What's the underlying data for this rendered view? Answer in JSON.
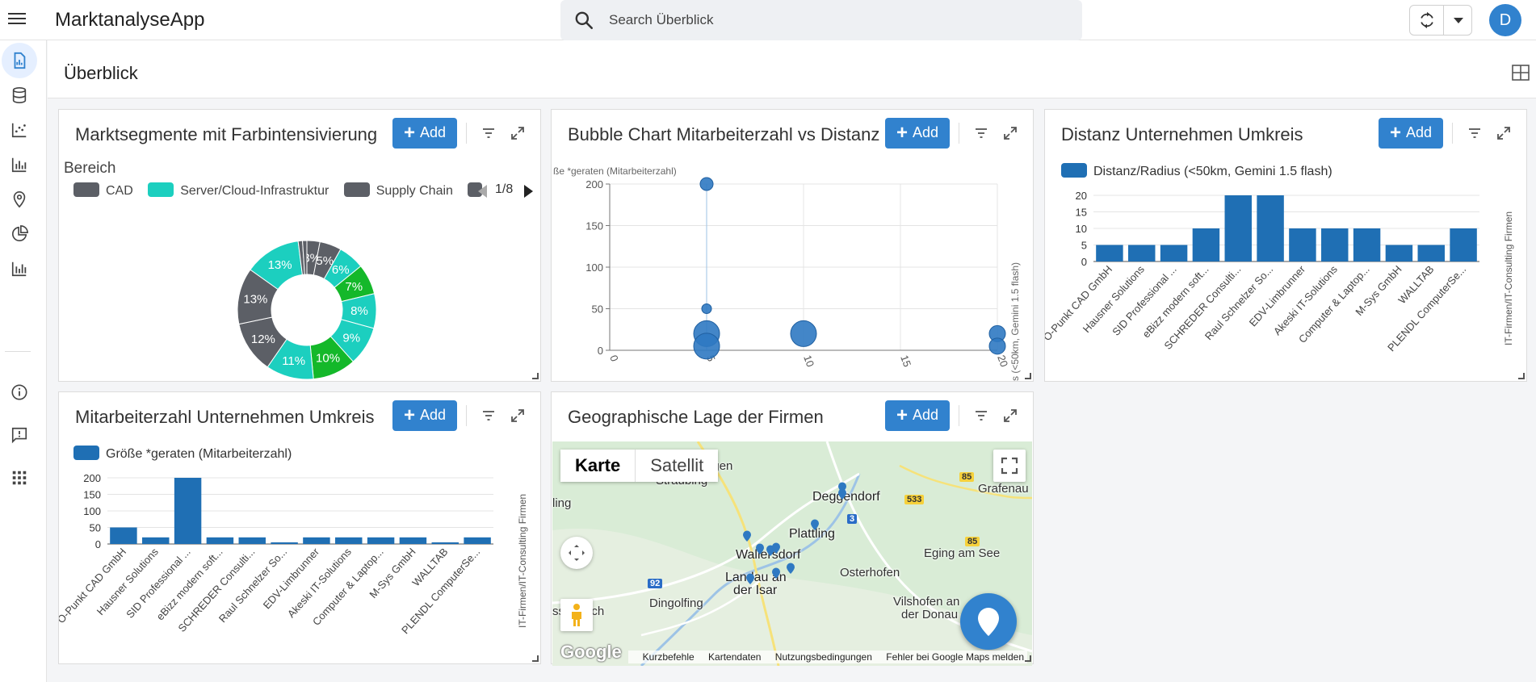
{
  "app": {
    "title": "MarktanalyseApp",
    "user_initial": "D"
  },
  "search": {
    "placeholder": "Search Überblick"
  },
  "page": {
    "title": "Überblick"
  },
  "common": {
    "add_label": "Add"
  },
  "colors": {
    "accent": "#3182ce",
    "dark_gray": "#5c5f66",
    "teal": "#1ccfbf",
    "green": "#14b82a"
  },
  "sidebar": {
    "items": [
      {
        "icon": "report-icon",
        "active": true
      },
      {
        "icon": "database-icon"
      },
      {
        "icon": "scatter-chart-icon"
      },
      {
        "icon": "bar-chart-icon"
      },
      {
        "icon": "location-pin-icon"
      },
      {
        "icon": "pie-chart-icon"
      },
      {
        "icon": "column-chart-icon"
      },
      {
        "icon": "info-icon"
      },
      {
        "icon": "feedback-icon"
      },
      {
        "icon": "apps-grid-icon"
      }
    ]
  },
  "panels": {
    "donut": {
      "title": "Marktsegmente mit Farbintensivierung",
      "legend_title": "Bereich",
      "legend": [
        "CAD",
        "Server/Cloud-Infrastruktur",
        "Supply Chain"
      ],
      "pager": "1/8"
    },
    "bubble": {
      "title": "Bubble Chart Mitarbeiterzahl vs Distanz",
      "ylabel": "ße *geraten (Mitarbeiterzahl)",
      "xlabel": "s (<50km, Gemini 1.5 flash)"
    },
    "distanz": {
      "title": "Distanz Unternehmen Umkreis",
      "legend": "Distanz/Radius (<50km, Gemini 1.5 flash)",
      "ylabel": "IT-Firmen/IT-Consulting Firmen"
    },
    "mitarbeiter": {
      "title": "Mitarbeiterzahl Unternehmen Umkreis",
      "legend": "Größe *geraten (Mitarbeiterzahl)",
      "ylabel": "IT-Firmen/IT-Consulting Firmen"
    },
    "map": {
      "title": "Geographische Lage der Firmen",
      "type_map": "Karte",
      "type_satellite": "Satellit",
      "google": "Google",
      "footer": [
        "Kurzbefehle",
        "Kartendaten",
        "Nutzungsbedingungen",
        "Fehler bei Google Maps melden"
      ],
      "places": [
        "Bogen",
        "Straubing",
        "ling",
        "Deggendorf",
        "Grafenau",
        "Plattling",
        "Wallersdorf",
        "Eging am See",
        "Landau an",
        "der Isar",
        "Osterhofen",
        "Dingolfing",
        "Vilshofen an",
        "der Donau",
        "ssenbach"
      ],
      "roads": [
        "85",
        "533",
        "3",
        "85",
        "92"
      ]
    }
  },
  "chart_data": [
    {
      "type": "pie",
      "chart": "donut",
      "series_name": "Bereich",
      "slices": [
        {
          "label": "3%",
          "value": 3,
          "color": "#5c5f66"
        },
        {
          "label": "5%",
          "value": 5,
          "color": "#5c5f66"
        },
        {
          "label": "6%",
          "value": 6,
          "color": "#1ccfbf"
        },
        {
          "label": "7%",
          "value": 7,
          "color": "#14b82a"
        },
        {
          "label": "8%",
          "value": 8,
          "color": "#1ccfbf"
        },
        {
          "label": "9%",
          "value": 9,
          "color": "#1ccfbf"
        },
        {
          "label": "10%",
          "value": 10,
          "color": "#14b82a"
        },
        {
          "label": "11%",
          "value": 11,
          "color": "#1ccfbf"
        },
        {
          "label": "12%",
          "value": 12,
          "color": "#5c5f66"
        },
        {
          "label": "13%",
          "value": 13,
          "color": "#5c5f66"
        },
        {
          "label": "13%",
          "value": 13,
          "color": "#1ccfbf"
        },
        {
          "label": "",
          "value": 1,
          "color": "#5c5f66"
        },
        {
          "label": "",
          "value": 1,
          "color": "#5c5f66"
        }
      ]
    },
    {
      "type": "scatter",
      "chart": "bubble",
      "xlim": [
        0,
        20
      ],
      "ylim": [
        0,
        200
      ],
      "xticks": [
        0,
        5,
        10,
        15,
        20
      ],
      "yticks": [
        0,
        50,
        100,
        150,
        200
      ],
      "points": [
        {
          "x": 5,
          "y": 200,
          "size": 1
        },
        {
          "x": 5,
          "y": 50,
          "size": 0.5
        },
        {
          "x": 5,
          "y": 20,
          "size": 3
        },
        {
          "x": 5,
          "y": 5,
          "size": 3
        },
        {
          "x": 10,
          "y": 20,
          "size": 3
        },
        {
          "x": 20,
          "y": 20,
          "size": 1.5
        },
        {
          "x": 20,
          "y": 5,
          "size": 1.5
        }
      ]
    },
    {
      "type": "bar",
      "chart": "distanz",
      "categories": [
        "O-Punkt CAD GmbH",
        "Hausner Solutions",
        "SID Professional ...",
        "eBizz modern soft...",
        "SCHREDER Consulti...",
        "Raul Schnelzer So...",
        "EDV-Limbrunner",
        "Akeski IT-Solutions",
        "Computer & Laptop...",
        "M-Sys GmbH",
        "WALLTAB",
        "PLENDL ComputerSe..."
      ],
      "values": [
        5,
        5,
        5,
        10,
        20,
        20,
        10,
        10,
        10,
        5,
        5,
        10
      ],
      "ylim": [
        0,
        20
      ],
      "yticks": [
        0,
        5,
        10,
        15,
        20
      ]
    },
    {
      "type": "bar",
      "chart": "mitarbeiter",
      "categories": [
        "O-Punkt CAD GmbH",
        "Hausner Solutions",
        "SID Professional ...",
        "eBizz modern soft...",
        "SCHREDER Consulti...",
        "Raul Schnelzer So...",
        "EDV-Limbrunner",
        "Akeski IT-Solutions",
        "Computer & Laptop...",
        "M-Sys GmbH",
        "WALLTAB",
        "PLENDL ComputerSe..."
      ],
      "values": [
        50,
        20,
        200,
        20,
        20,
        5,
        20,
        20,
        20,
        20,
        5,
        20
      ],
      "ylim": [
        0,
        200
      ],
      "yticks": [
        0,
        50,
        100,
        150,
        200
      ]
    }
  ]
}
